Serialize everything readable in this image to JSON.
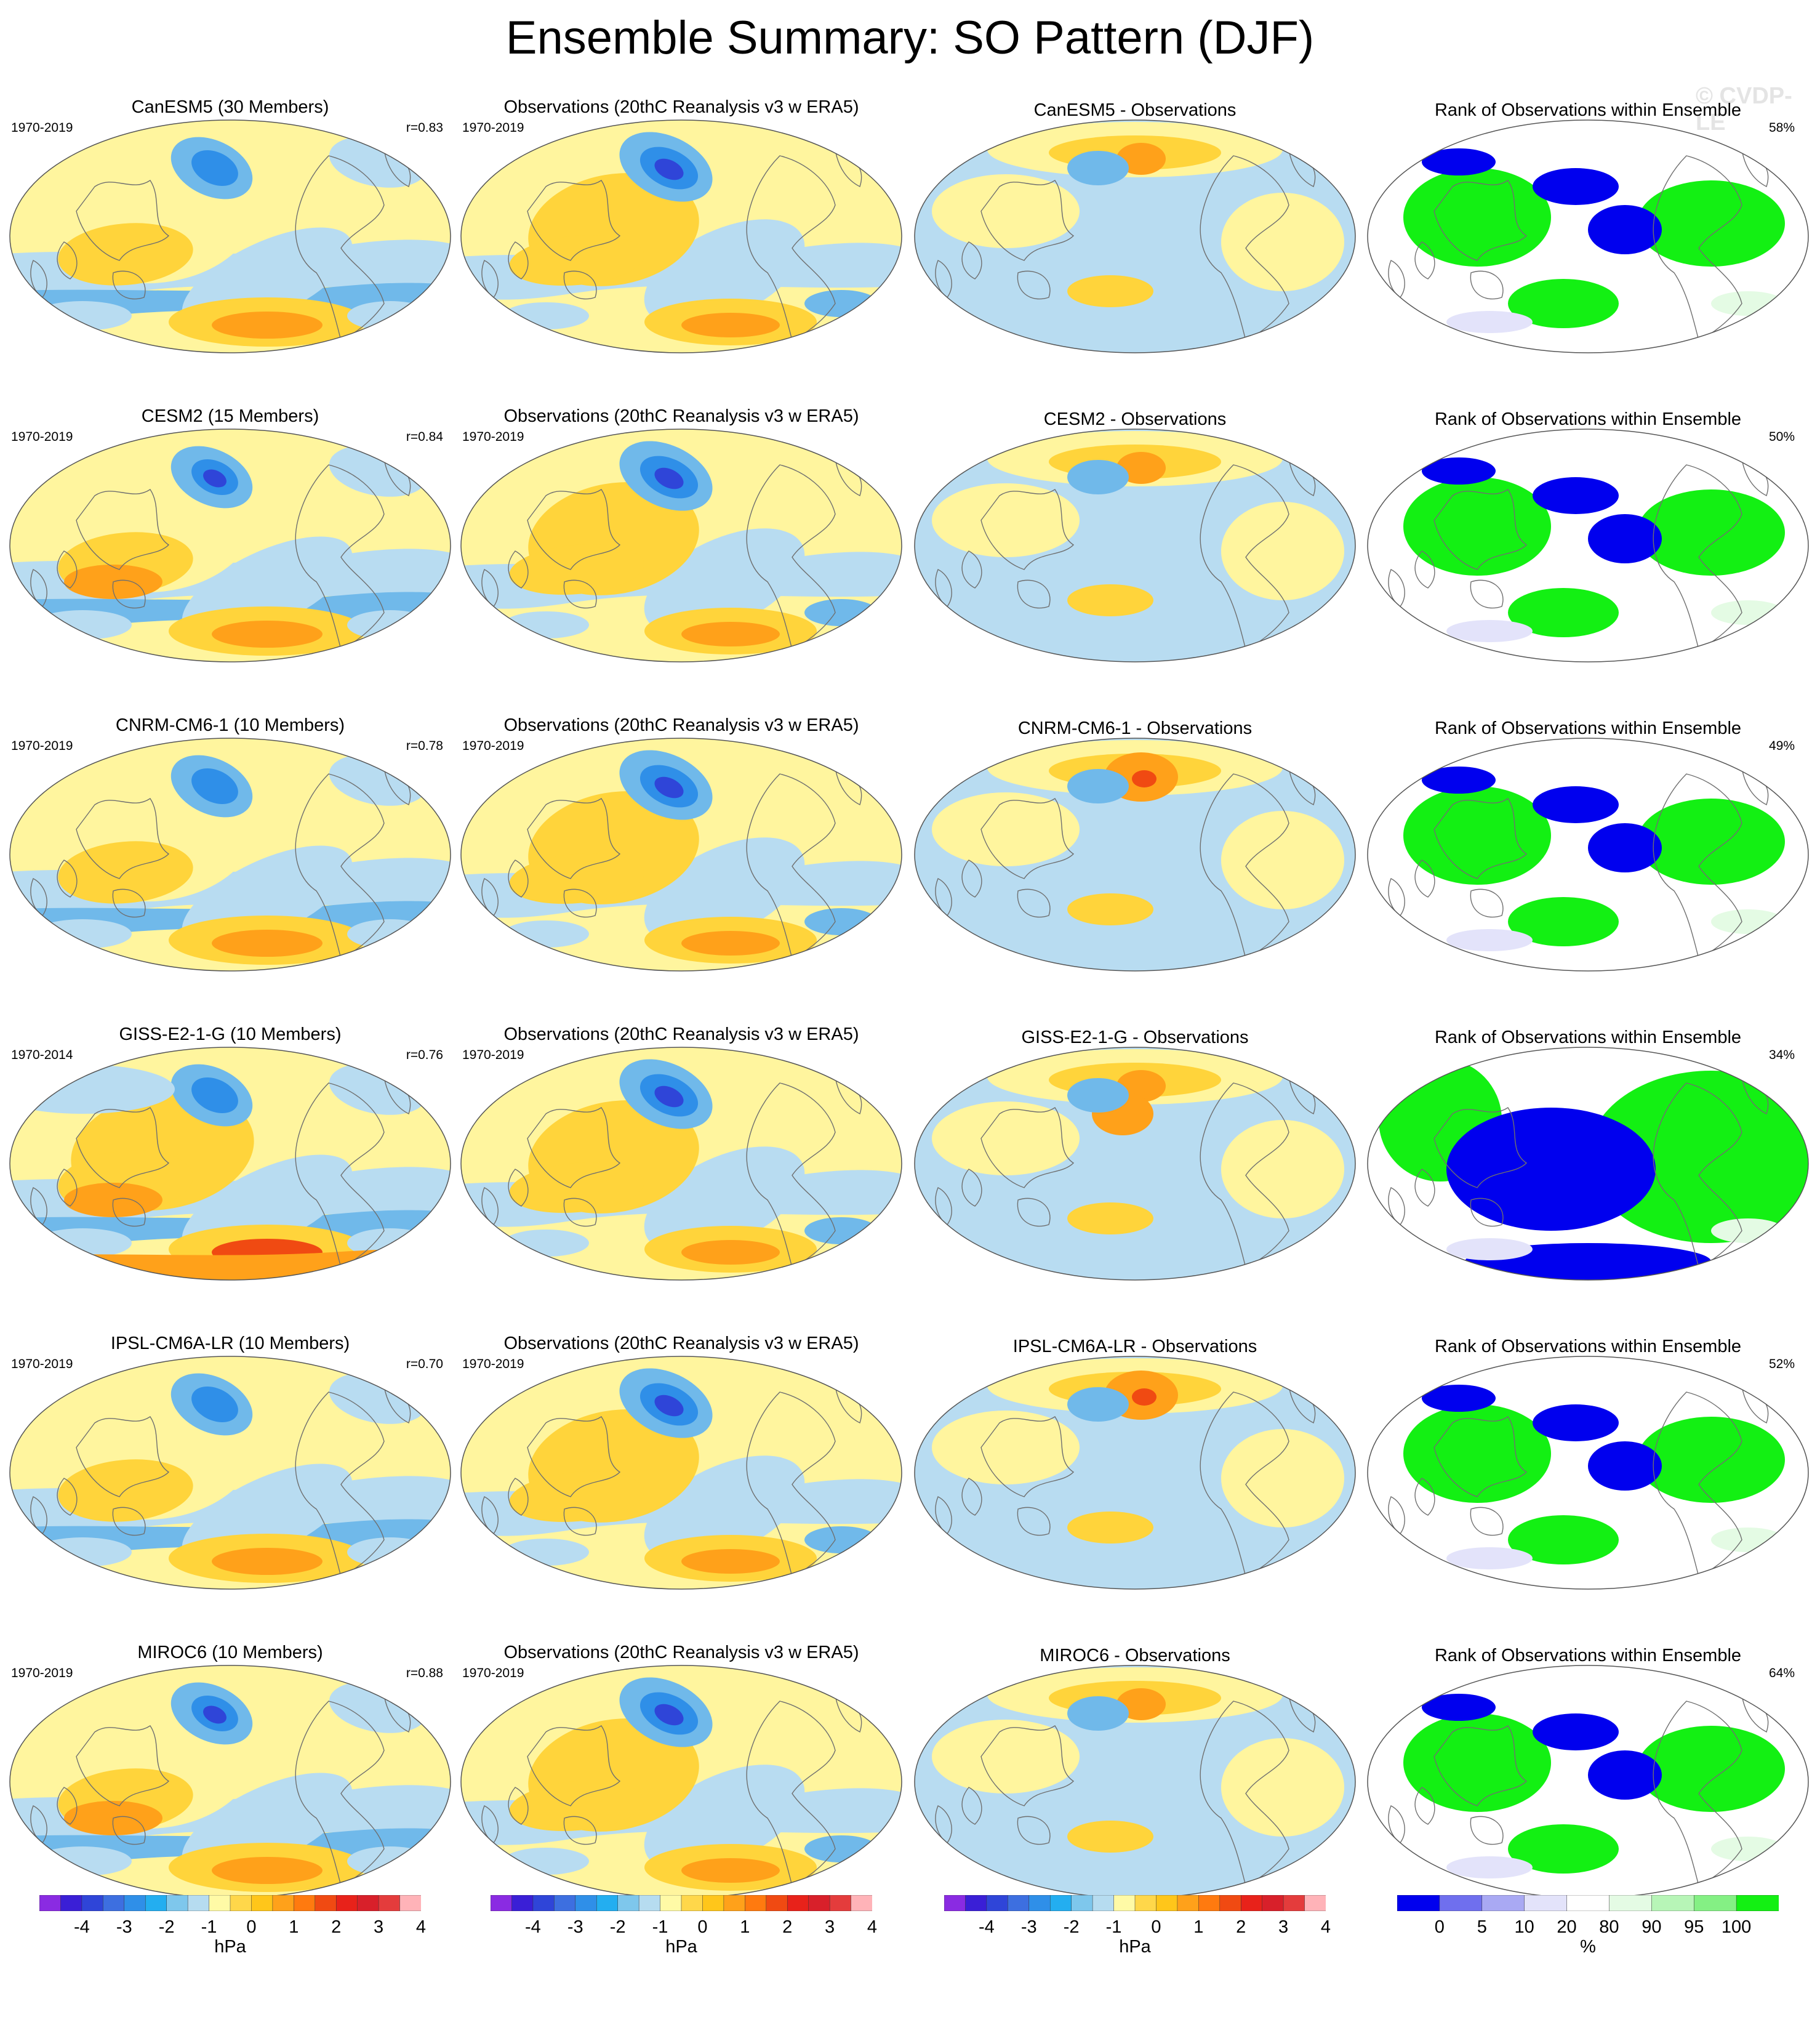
{
  "title": "Ensemble Summary: SO Pattern (DJF)",
  "watermark": "© CVDP-LE",
  "columns": {
    "diff_suffix": " - Observations",
    "obs_title": "Observations (20thC Reanalysis v3 w ERA5)",
    "rank_title": "Rank of Observations within Ensemble"
  },
  "rows": [
    {
      "model": "CanESM5",
      "model_title": "CanESM5 (30 Members)",
      "model_years": "1970-2019",
      "r": "r=0.83",
      "obs_title": "Observations (20thC Reanalysis v3 w ERA5)",
      "obs_years": "1970-2019",
      "diff_title": "CanESM5 - Observations",
      "rank_title": "Rank of Observations within Ensemble",
      "rank_pct": "58%"
    },
    {
      "model": "CESM2",
      "model_title": "CESM2 (15 Members)",
      "model_years": "1970-2019",
      "r": "r=0.84",
      "obs_title": "Observations (20thC Reanalysis v3 w ERA5)",
      "obs_years": "1970-2019",
      "diff_title": "CESM2 - Observations",
      "rank_title": "Rank of Observations within Ensemble",
      "rank_pct": "50%"
    },
    {
      "model": "CNRM-CM6-1",
      "model_title": "CNRM-CM6-1 (10 Members)",
      "model_years": "1970-2019",
      "r": "r=0.78",
      "obs_title": "Observations (20thC Reanalysis v3 w ERA5)",
      "obs_years": "1970-2019",
      "diff_title": "CNRM-CM6-1 - Observations",
      "rank_title": "Rank of Observations within Ensemble",
      "rank_pct": "49%"
    },
    {
      "model": "GISS-E2-1-G",
      "model_title": "GISS-E2-1-G (10 Members)",
      "model_years": "1970-2014",
      "r": "r=0.76",
      "obs_title": "Observations (20thC Reanalysis v3 w ERA5)",
      "obs_years": "1970-2019",
      "diff_title": "GISS-E2-1-G - Observations",
      "rank_title": "Rank of Observations within Ensemble",
      "rank_pct": "34%"
    },
    {
      "model": "IPSL-CM6A-LR",
      "model_title": "IPSL-CM6A-LR (10 Members)",
      "model_years": "1970-2019",
      "r": "r=0.70",
      "obs_title": "Observations (20thC Reanalysis v3 w ERA5)",
      "obs_years": "1970-2019",
      "diff_title": "IPSL-CM6A-LR - Observations",
      "rank_title": "Rank of Observations within Ensemble",
      "rank_pct": "52%"
    },
    {
      "model": "MIROC6",
      "model_title": "MIROC6 (10 Members)",
      "model_years": "1970-2019",
      "r": "r=0.88",
      "obs_title": "Observations (20thC Reanalysis v3 w ERA5)",
      "obs_years": "1970-2019",
      "diff_title": "MIROC6 - Observations",
      "rank_title": "Rank of Observations within Ensemble",
      "rank_pct": "64%"
    }
  ],
  "colorbars": {
    "hpa": {
      "unit": "hPa",
      "ticks": [
        "-4",
        "-3",
        "-2",
        "-1",
        "0",
        "1",
        "2",
        "3",
        "4"
      ],
      "colors": [
        "#8a2be2",
        "#3a1fd6",
        "#2f45d8",
        "#3d6fe0",
        "#2f8fe8",
        "#23aef0",
        "#7ec7ec",
        "#b6dcf0",
        "#fffaa6",
        "#ffd74a",
        "#ffc61a",
        "#ffa11a",
        "#ff7a0f",
        "#f04a12",
        "#e8221a",
        "#d8202a",
        "#e43c3c",
        "#ffb3b8"
      ]
    },
    "rank": {
      "unit": "%",
      "ticks": [
        "0",
        "5",
        "10",
        "20",
        "80",
        "90",
        "95",
        "100"
      ],
      "colors": [
        "#0000ee",
        "#6f6fee",
        "#a9a9f3",
        "#e3e3fa",
        "#ffffff",
        "#e4fbe4",
        "#b7f5b7",
        "#84f084",
        "#13f013"
      ]
    }
  },
  "fill_colors": {
    "yellow": "#fff59e",
    "lightblue": "#b8dcf1",
    "midblue": "#70b9ea",
    "blue": "#2f8fe8",
    "darkblue": "#2f45d8",
    "gold": "#ffd43b",
    "orange": "#ffa11a",
    "red": "#f04a12",
    "rank_blue": "#0000ee",
    "rank_green": "#13f013",
    "rank_lightgreen": "#e4fbe4",
    "rank_lightblue": "#e3e3fa"
  }
}
